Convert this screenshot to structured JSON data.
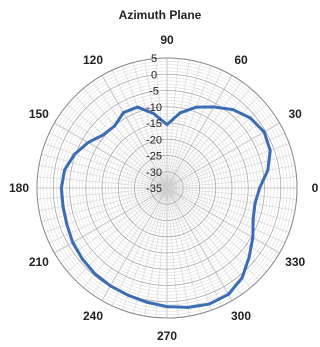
{
  "chart_data": {
    "type": "polar-line",
    "title": "Azimuth Plane",
    "angle_unit": "degrees",
    "angle_tick_labels": [
      "0",
      "30",
      "60",
      "90",
      "120",
      "150",
      "180",
      "210",
      "240",
      "270",
      "300",
      "330"
    ],
    "angle_ticks": [
      0,
      30,
      60,
      90,
      120,
      150,
      180,
      210,
      240,
      270,
      300,
      330
    ],
    "angular_grid_step": 5,
    "radial_range": [
      -35,
      5
    ],
    "radial_tick_labels": [
      "5",
      "0",
      "-5",
      "-10",
      "-15",
      "-20",
      "-25",
      "-30",
      "-35"
    ],
    "radial_ticks": [
      5,
      0,
      -5,
      -10,
      -15,
      -20,
      -25,
      -30,
      -35
    ],
    "grid": true,
    "series": [
      {
        "color": "#3A6DB5",
        "angles": [
          0,
          10,
          20,
          30,
          40,
          50,
          60,
          70,
          80,
          90,
          100,
          110,
          120,
          130,
          140,
          150,
          160,
          170,
          180,
          190,
          200,
          210,
          220,
          230,
          240,
          250,
          260,
          270,
          280,
          290,
          300,
          310,
          320,
          330,
          340,
          350
        ],
        "values": [
          -6.5,
          -3.5,
          -1.2,
          -0.5,
          -1.5,
          -3.5,
          -6.2,
          -8.5,
          -11.5,
          -15.5,
          -11.8,
          -8.5,
          -8.2,
          -10.0,
          -9.5,
          -7.0,
          -4.7,
          -3.0,
          -2.5,
          -2.5,
          -2.2,
          -1.5,
          -1.0,
          -0.5,
          -0.2,
          0.1,
          0.7,
          1.5,
          2.3,
          3.0,
          2.8,
          1.0,
          -2.0,
          -4.5,
          -6.8,
          -7.5
        ]
      }
    ]
  }
}
